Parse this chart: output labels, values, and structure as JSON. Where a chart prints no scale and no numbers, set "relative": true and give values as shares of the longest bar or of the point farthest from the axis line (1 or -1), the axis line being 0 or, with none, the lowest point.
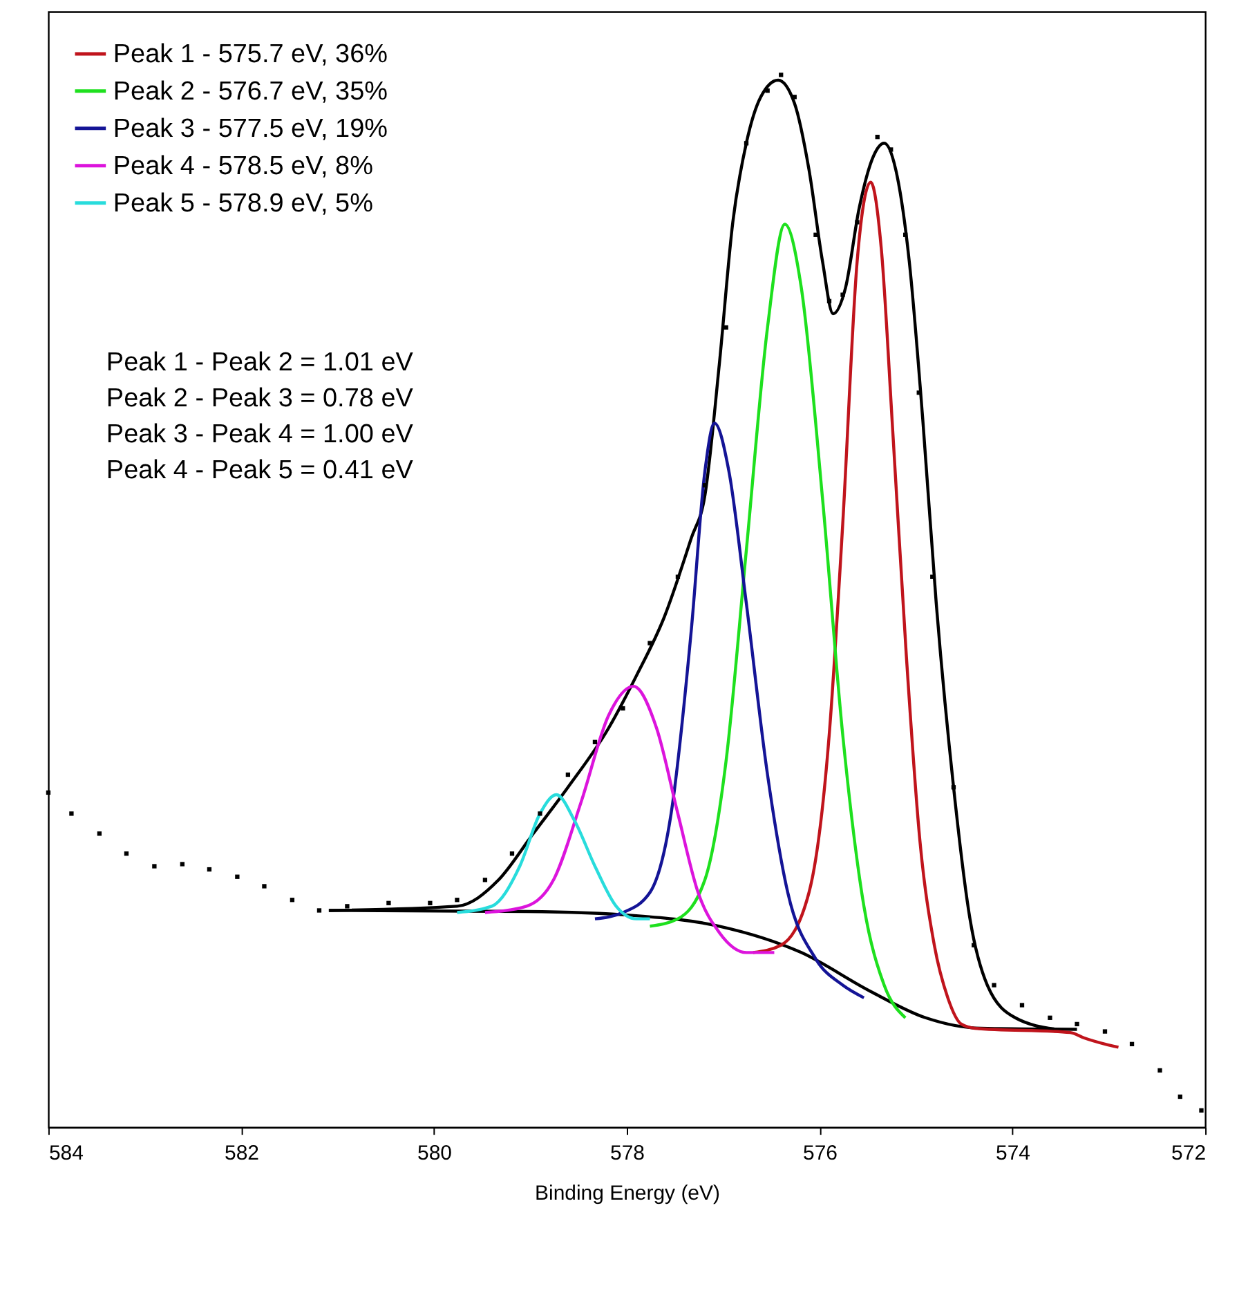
{
  "chart_data": {
    "type": "line",
    "relative": true,
    "xlabel": "Binding Energy (eV)",
    "xlim": [
      584,
      572
    ],
    "xticks": [
      584,
      582,
      580,
      578,
      576,
      574,
      572
    ],
    "grid": false,
    "legend": "top left",
    "annotations": [
      "Peak 1 - Peak 2 = 1.01 eV",
      "Peak 2 - Peak 3 = 0.78 eV",
      "Peak 3 - Peak 4 = 1.00 eV",
      "Peak 4 - Peak 5 = 0.41 eV"
    ],
    "series": [
      {
        "type": "scatter",
        "marker": "square",
        "color": "#000000",
        "x": [
          584.0,
          583.76,
          583.47,
          583.19,
          582.9,
          582.61,
          582.33,
          582.04,
          581.76,
          581.47,
          581.19,
          580.9,
          580.47,
          580.04,
          579.76,
          579.47,
          579.19,
          578.9,
          578.61,
          578.33,
          578.04,
          577.76,
          577.47,
          577.19,
          576.97,
          576.76,
          576.54,
          576.4,
          576.26,
          576.04,
          575.9,
          575.76,
          575.61,
          575.4,
          575.26,
          575.11,
          574.97,
          574.83,
          574.61,
          574.4,
          574.19,
          573.9,
          573.61,
          573.33,
          573.04,
          572.76,
          572.47,
          572.26,
          572.04
        ],
        "values": [
          0.318,
          0.298,
          0.279,
          0.26,
          0.248,
          0.25,
          0.245,
          0.238,
          0.229,
          0.216,
          0.206,
          0.21,
          0.213,
          0.213,
          0.216,
          0.235,
          0.26,
          0.298,
          0.335,
          0.366,
          0.398,
          0.46,
          0.523,
          0.61,
          0.76,
          0.935,
          0.985,
          1.0,
          0.979,
          0.848,
          0.785,
          0.791,
          0.86,
          0.941,
          0.929,
          0.848,
          0.698,
          0.523,
          0.323,
          0.173,
          0.135,
          0.116,
          0.104,
          0.098,
          0.091,
          0.079,
          0.054,
          0.029,
          0.016
        ]
      },
      {
        "color": "#000000",
        "x": [
          581.09,
          579.76,
          579.33,
          578.97,
          578.61,
          578.19,
          577.9,
          577.61,
          577.33,
          577.19,
          577.04,
          576.9,
          576.76,
          576.61,
          576.43,
          576.26,
          576.11,
          575.97,
          575.86,
          575.73,
          575.59,
          575.44,
          575.33,
          575.21,
          575.07,
          574.93,
          574.79,
          574.61,
          574.44,
          574.26,
          573.97,
          573.54
        ],
        "values": [
          0.206,
          0.21,
          0.235,
          0.279,
          0.323,
          0.379,
          0.429,
          0.485,
          0.56,
          0.6,
          0.725,
          0.86,
          0.935,
          0.979,
          0.995,
          0.973,
          0.91,
          0.823,
          0.773,
          0.798,
          0.873,
          0.923,
          0.935,
          0.91,
          0.823,
          0.673,
          0.498,
          0.323,
          0.198,
          0.135,
          0.104,
          0.093
        ]
      },
      {
        "color": "#000000",
        "x": [
          581.09,
          579.04,
          577.9,
          577.04,
          576.19,
          575.47,
          574.9,
          574.33,
          573.33
        ],
        "values": [
          0.206,
          0.205,
          0.201,
          0.191,
          0.166,
          0.129,
          0.104,
          0.094,
          0.093
        ]
      },
      {
        "name": "Peak 1 - 575.7 eV, 36%",
        "color": "#c0141c",
        "x": [
          576.69,
          576.4,
          576.11,
          575.9,
          575.76,
          575.61,
          575.47,
          575.36,
          575.24,
          575.1,
          574.96,
          574.81,
          574.67,
          574.53,
          574.39,
          573.4,
          573.26,
          573.04,
          572.9
        ],
        "values": [
          0.166,
          0.173,
          0.223,
          0.373,
          0.573,
          0.823,
          0.898,
          0.835,
          0.66,
          0.448,
          0.273,
          0.173,
          0.123,
          0.098,
          0.094,
          0.09,
          0.085,
          0.079,
          0.076
        ]
      },
      {
        "name": "Peak 2 - 576.7 eV, 35%",
        "color": "#1ee01e",
        "x": [
          577.76,
          577.47,
          577.19,
          576.97,
          576.76,
          576.54,
          576.36,
          576.19,
          575.97,
          575.76,
          575.54,
          575.33,
          575.11
        ],
        "values": [
          0.191,
          0.198,
          0.235,
          0.348,
          0.548,
          0.76,
          0.858,
          0.798,
          0.598,
          0.373,
          0.21,
          0.135,
          0.104
        ]
      },
      {
        "name": "Peak 3 - 577.5 eV, 19%",
        "color": "#141496",
        "x": [
          578.33,
          578.04,
          577.76,
          577.54,
          577.33,
          577.19,
          577.09,
          576.94,
          576.76,
          576.54,
          576.33,
          576.04,
          575.76,
          575.54
        ],
        "values": [
          0.198,
          0.204,
          0.223,
          0.298,
          0.473,
          0.623,
          0.669,
          0.623,
          0.498,
          0.335,
          0.223,
          0.16,
          0.135,
          0.123
        ]
      },
      {
        "name": "Peak 4 - 578.5 eV, 8%",
        "color": "#dc14dc",
        "x": [
          579.47,
          579.04,
          578.76,
          578.47,
          578.19,
          577.93,
          577.69,
          577.47,
          577.26,
          577.04,
          576.76,
          576.47
        ],
        "values": [
          0.204,
          0.21,
          0.235,
          0.31,
          0.391,
          0.419,
          0.379,
          0.298,
          0.223,
          0.185,
          0.166,
          0.166
        ]
      },
      {
        "name": "Peak 5 - 578.9 eV, 5%",
        "color": "#28dcdc",
        "x": [
          579.76,
          579.4,
          579.11,
          578.9,
          578.73,
          578.54,
          578.33,
          578.11,
          577.9,
          577.76
        ],
        "values": [
          0.204,
          0.21,
          0.248,
          0.298,
          0.316,
          0.291,
          0.248,
          0.21,
          0.198,
          0.198
        ]
      }
    ]
  }
}
